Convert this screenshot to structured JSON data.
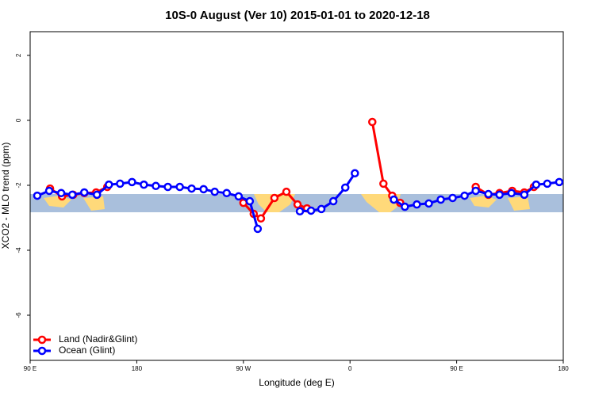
{
  "chart_data": {
    "type": "line",
    "title": "10S-0 August (Ver 10)   2015-01-01 to 2020-12-18",
    "xlabel": "Longitude (deg E)",
    "ylabel": "XCO2 - MLO trend (ppm)",
    "xlim": [
      90,
      540
    ],
    "ylim": [
      -7.39,
      2.73
    ],
    "xticks": [
      {
        "value": 90,
        "label": "90 E"
      },
      180,
      {
        "value": 270,
        "label": "90 W"
      },
      {
        "value": 360,
        "label": "0"
      },
      {
        "value": 450,
        "label": "90 E"
      },
      {
        "value": 540,
        "label": "180"
      }
    ],
    "yticks": [
      2,
      0,
      -2,
      -4,
      -6
    ],
    "legend": "bottom-left",
    "series": [
      {
        "name": "Land (Nadir&Glint)",
        "color": "#ff0000",
        "x": [
          106.8,
          116.9,
          126.3,
          135.7,
          145.7,
          155.1,
          null,
          270.0,
          278.7,
          284.8,
          296.2,
          306.3,
          315.7,
          323.7,
          null,
          378.8,
          388.2,
          395.6,
          402.3,
          null,
          466.1,
          476.8,
          486.2,
          496.9,
          507.1,
          515.2
        ],
        "values": [
          -2.1,
          -2.34,
          -2.29,
          -2.24,
          -2.22,
          -2.05,
          null,
          -2.54,
          -2.88,
          -3.02,
          -2.39,
          -2.2,
          -2.59,
          -2.71,
          null,
          -0.05,
          -1.95,
          -2.32,
          -2.54,
          null,
          -2.05,
          -2.29,
          -2.24,
          -2.17,
          -2.22,
          -2.05
        ]
      },
      {
        "name": "Ocean (Glint)",
        "color": "#0000ff",
        "x": [
          96.0,
          106.1,
          116.2,
          125.6,
          135.7,
          146.4,
          156.5,
          165.9,
          176.0,
          186.0,
          196.1,
          206.2,
          216.3,
          226.3,
          236.4,
          245.8,
          255.9,
          266.0,
          275.4,
          282.1,
          null,
          317.7,
          327.1,
          335.8,
          345.9,
          356.0,
          364.1,
          null,
          397.0,
          406.3,
          416.4,
          426.5,
          436.6,
          446.6,
          456.7,
          466.1,
          476.8,
          486.2,
          496.3,
          507.1,
          517.1,
          526.5,
          536.6
        ],
        "values": [
          -2.32,
          -2.17,
          -2.24,
          -2.29,
          -2.22,
          -2.29,
          -1.98,
          -1.95,
          -1.9,
          -1.98,
          -2.02,
          -2.05,
          -2.05,
          -2.1,
          -2.12,
          -2.2,
          -2.24,
          -2.34,
          -2.49,
          -3.34,
          null,
          -2.8,
          -2.78,
          -2.73,
          -2.49,
          -2.07,
          -1.63,
          null,
          -2.44,
          -2.66,
          -2.59,
          -2.56,
          -2.44,
          -2.39,
          -2.32,
          -2.17,
          -2.27,
          -2.29,
          -2.24,
          -2.29,
          -1.98,
          -1.95,
          -1.9
        ]
      }
    ]
  }
}
